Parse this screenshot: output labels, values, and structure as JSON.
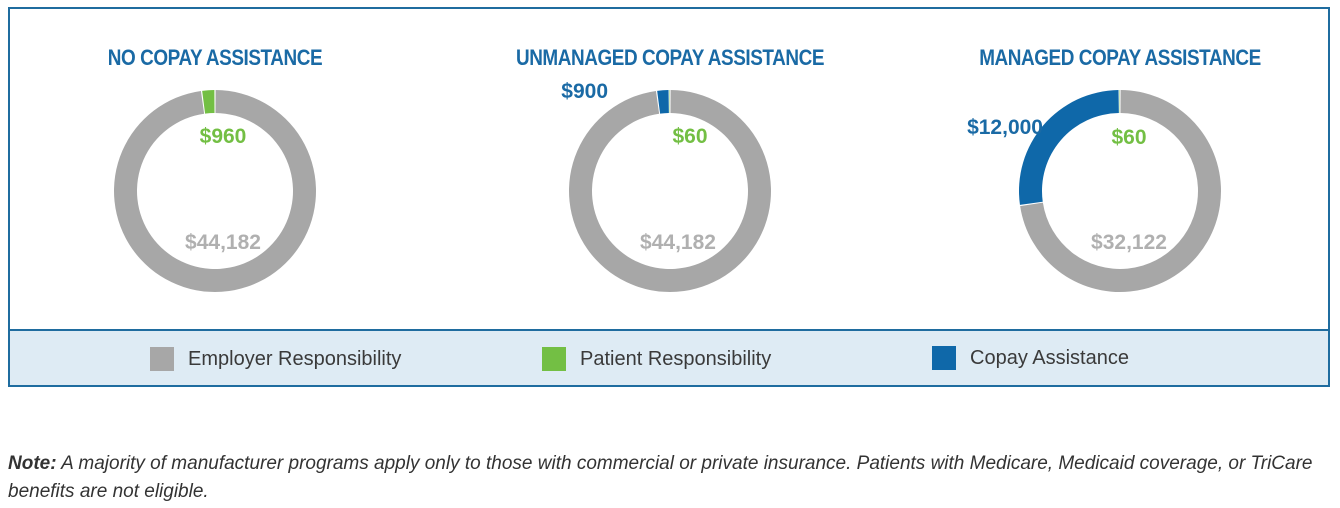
{
  "chart_data": [
    {
      "type": "pie",
      "title": "NO COPAY ASSISTANCE",
      "series": [
        {
          "name": "Employer Responsibility",
          "value": 44182,
          "label": "$44,182"
        },
        {
          "name": "Patient Responsibility",
          "value": 960,
          "label": "$960"
        }
      ]
    },
    {
      "type": "pie",
      "title": "UNMANAGED COPAY ASSISTANCE",
      "series": [
        {
          "name": "Employer Responsibility",
          "value": 44182,
          "label": "$44,182"
        },
        {
          "name": "Patient Responsibility",
          "value": 60,
          "label": "$60"
        },
        {
          "name": "Copay Assistance",
          "value": 900,
          "label": "$900"
        }
      ]
    },
    {
      "type": "pie",
      "title": "MANAGED COPAY ASSISTANCE",
      "series": [
        {
          "name": "Employer Responsibility",
          "value": 32122,
          "label": "$32,122"
        },
        {
          "name": "Patient Responsibility",
          "value": 60,
          "label": "$60"
        },
        {
          "name": "Copay Assistance",
          "value": 12000,
          "label": "$12,000"
        }
      ]
    }
  ],
  "legend": [
    {
      "name": "Employer Responsibility",
      "color": "#a7a7a7"
    },
    {
      "name": "Patient Responsibility",
      "color": "#73bf44"
    },
    {
      "name": "Copay Assistance",
      "color": "#0f68a9"
    }
  ],
  "colors": {
    "Employer Responsibility": "#a7a7a7",
    "Patient Responsibility": "#73bf44",
    "Copay Assistance": "#0f68a9"
  },
  "note": {
    "lead": "Note:",
    "text": " A majority of manufacturer programs apply only to those with commercial or private insurance. Patients with Medicare, Medicaid coverage, or TriCare benefits are not eligible."
  }
}
